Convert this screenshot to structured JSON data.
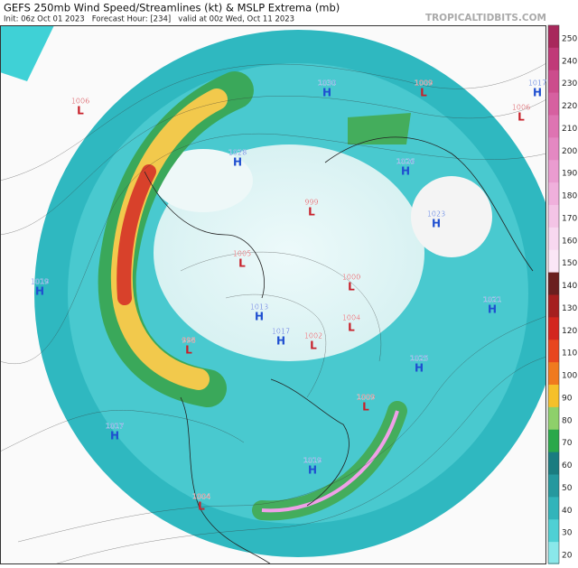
{
  "header": {
    "title": "GEFS 250mb Wind Speed/Streamlines (kt) & MSLP Extrema (mb)",
    "subtitle": "Init: 06z Oct 01 2023   Forecast Hour: [234]   valid at 00z Wed, Oct 11 2023",
    "site": "TROPICALTIDBITS.COM"
  },
  "colorbar": {
    "labels": [
      250,
      240,
      230,
      220,
      210,
      200,
      190,
      180,
      170,
      160,
      150,
      140,
      130,
      120,
      110,
      100,
      90,
      80,
      70,
      60,
      50,
      40,
      30,
      20
    ]
  },
  "extrema": [
    {
      "type": "L",
      "pressure": 1006
    },
    {
      "type": "H",
      "pressure": 1030
    },
    {
      "type": "L",
      "pressure": 1009
    },
    {
      "type": "H",
      "pressure": 1017
    },
    {
      "type": "L",
      "pressure": 1006
    },
    {
      "type": "H",
      "pressure": 1028
    },
    {
      "type": "H",
      "pressure": 1026
    },
    {
      "type": "L",
      "pressure": 999
    },
    {
      "type": "H",
      "pressure": 1023
    },
    {
      "type": "L",
      "pressure": 1005
    },
    {
      "type": "H",
      "pressure": 1019
    },
    {
      "type": "L",
      "pressure": 1000
    },
    {
      "type": "H",
      "pressure": 1021
    },
    {
      "type": "H",
      "pressure": 1013
    },
    {
      "type": "L",
      "pressure": 1004
    },
    {
      "type": "L",
      "pressure": 1002
    },
    {
      "type": "L",
      "pressure": 998
    },
    {
      "type": "H",
      "pressure": 1017
    },
    {
      "type": "H",
      "pressure": 1025
    },
    {
      "type": "L",
      "pressure": 1009
    },
    {
      "type": "H",
      "pressure": 1017
    },
    {
      "type": "H",
      "pressure": 1019
    },
    {
      "type": "L",
      "pressure": 1004
    }
  ]
}
